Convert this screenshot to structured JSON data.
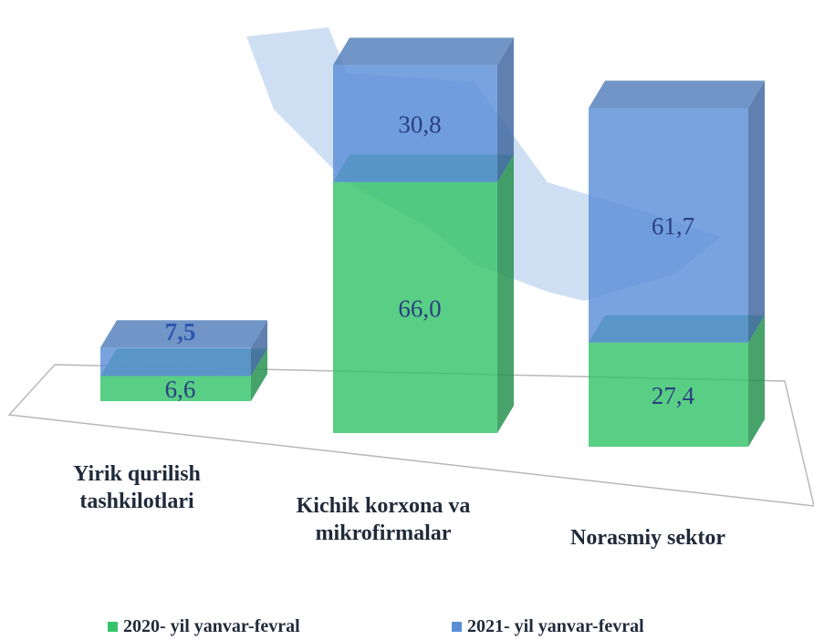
{
  "chart_data": {
    "type": "stacked-bar-3d",
    "categories": [
      "Yirik qurilish tashkilotlari",
      "Kichik korxona va mikrofirmalar",
      "Norasmiy sektor"
    ],
    "series": [
      {
        "name": "2020- yil yanvar-fevral",
        "color": "#35c46a",
        "values": [
          6.6,
          66.0,
          27.4
        ],
        "value_labels": [
          "6,6",
          "66,0",
          "27,4"
        ]
      },
      {
        "name": "2021- yil yanvar-fevral",
        "color": "#5a8fd8",
        "values": [
          7.5,
          30.8,
          61.7
        ],
        "value_labels": [
          "7,5",
          "30,8",
          "61,7"
        ]
      }
    ]
  }
}
